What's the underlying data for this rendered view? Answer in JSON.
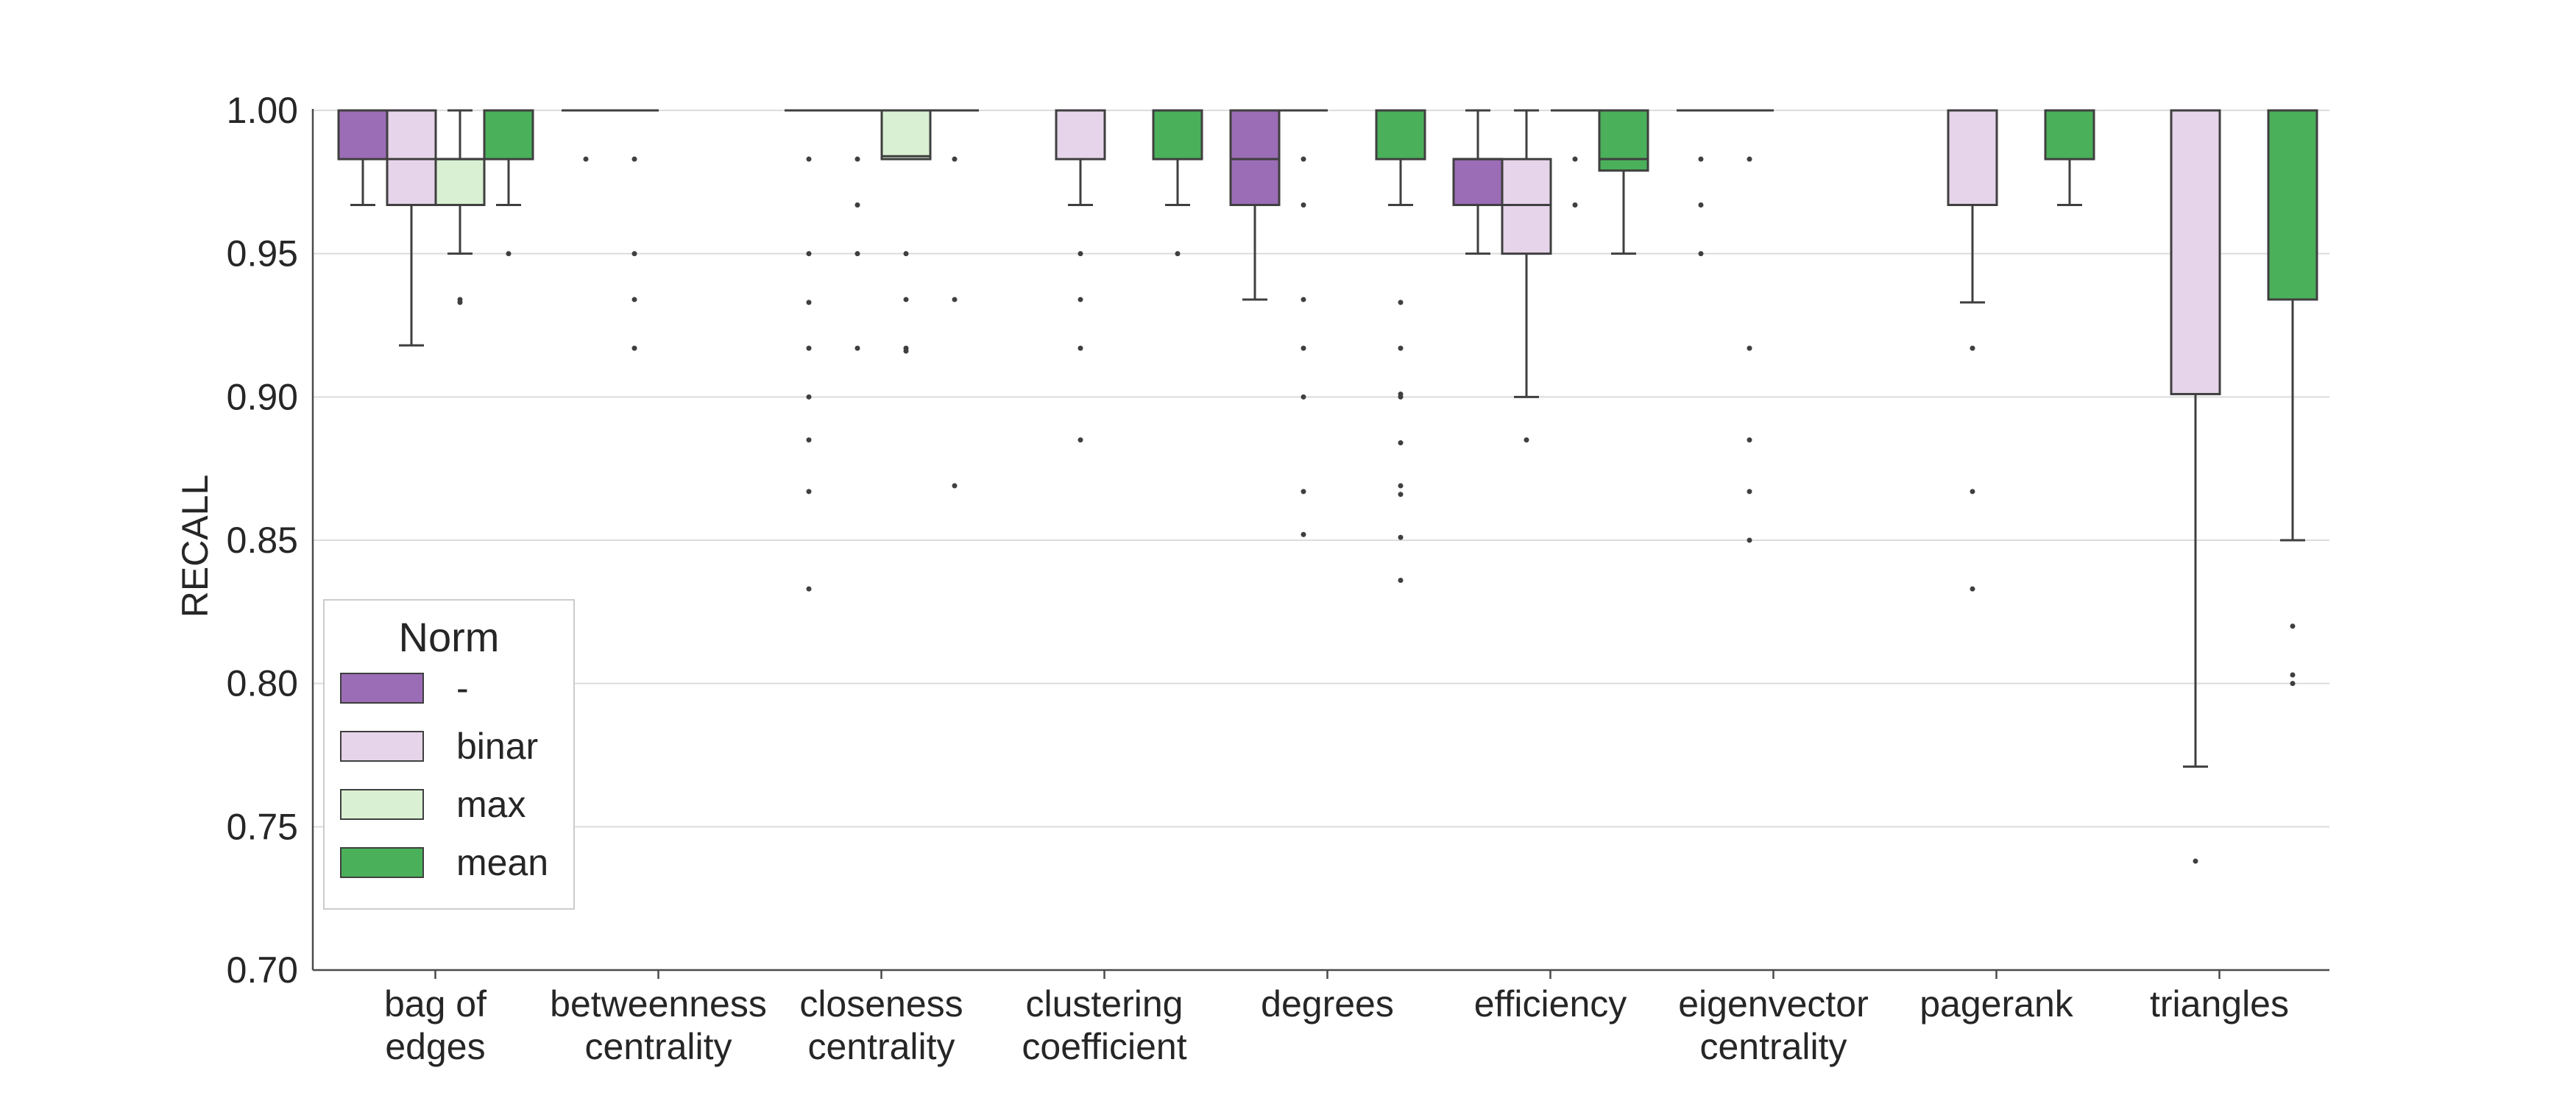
{
  "chart_data": {
    "type": "box",
    "title": "",
    "xlabel": "",
    "ylabel": "RECALL",
    "ylim": [
      0.7,
      1.0
    ],
    "yticks": [
      "0.70",
      "0.75",
      "0.80",
      "0.85",
      "0.90",
      "0.95",
      "1.00"
    ],
    "grid": "horizontal",
    "categories": [
      [
        "bag of",
        "edges"
      ],
      [
        "betweenness",
        "centrality"
      ],
      [
        "closeness",
        "centrality"
      ],
      [
        "clustering",
        "coefficient"
      ],
      [
        "degrees"
      ],
      [
        "efficiency"
      ],
      [
        "eigenvector",
        "centrality"
      ],
      [
        "pagerank"
      ],
      [
        "triangles"
      ]
    ],
    "legend": {
      "title": "Norm",
      "position": "lower-left",
      "entries": [
        "-",
        "binar",
        "max",
        "mean"
      ]
    },
    "series": [
      {
        "name": "-",
        "color": "#9b6db6",
        "boxes": [
          {
            "q1": 0.983,
            "median": 1.0,
            "q3": 1.0,
            "whislo": 0.967,
            "whishi": 1.0,
            "fliers": []
          },
          {
            "q1": 1.0,
            "median": 1.0,
            "q3": 1.0,
            "whislo": 1.0,
            "whishi": 1.0,
            "fliers": [
              0.983
            ]
          },
          {
            "q1": 1.0,
            "median": 1.0,
            "q3": 1.0,
            "whislo": 1.0,
            "whishi": 1.0,
            "fliers": [
              0.983,
              0.95,
              0.933,
              0.917,
              0.9,
              0.885,
              0.867,
              0.833
            ]
          },
          null,
          {
            "q1": 0.967,
            "median": 0.983,
            "q3": 1.0,
            "whislo": 0.934,
            "whishi": 1.0,
            "fliers": []
          },
          {
            "q1": 0.967,
            "median": 0.983,
            "q3": 0.983,
            "whislo": 0.95,
            "whishi": 1.0,
            "fliers": []
          },
          {
            "q1": 1.0,
            "median": 1.0,
            "q3": 1.0,
            "whislo": 1.0,
            "whishi": 1.0,
            "fliers": [
              0.983,
              0.967,
              0.95
            ]
          },
          null,
          null
        ]
      },
      {
        "name": "binar",
        "color": "#e6d4ea",
        "boxes": [
          {
            "q1": 0.967,
            "median": 0.983,
            "q3": 1.0,
            "whislo": 0.918,
            "whishi": 1.0,
            "fliers": []
          },
          {
            "q1": 1.0,
            "median": 1.0,
            "q3": 1.0,
            "whislo": 1.0,
            "whishi": 1.0,
            "fliers": [
              0.983,
              0.95,
              0.934,
              0.917
            ]
          },
          {
            "q1": 1.0,
            "median": 1.0,
            "q3": 1.0,
            "whislo": 1.0,
            "whishi": 1.0,
            "fliers": [
              0.983,
              0.967,
              0.95,
              0.917
            ]
          },
          {
            "q1": 0.983,
            "median": 1.0,
            "q3": 1.0,
            "whislo": 0.967,
            "whishi": 1.0,
            "fliers": [
              0.95,
              0.934,
              0.917,
              0.885
            ]
          },
          {
            "q1": 1.0,
            "median": 1.0,
            "q3": 1.0,
            "whislo": 1.0,
            "whishi": 1.0,
            "fliers": [
              0.983,
              0.967,
              0.934,
              0.917,
              0.9,
              0.867,
              0.852
            ]
          },
          {
            "q1": 0.95,
            "median": 0.967,
            "q3": 0.983,
            "whislo": 0.9,
            "whishi": 1.0,
            "fliers": [
              0.885
            ]
          },
          {
            "q1": 1.0,
            "median": 1.0,
            "q3": 1.0,
            "whislo": 1.0,
            "whishi": 1.0,
            "fliers": [
              0.983,
              0.917,
              0.885,
              0.867,
              0.85
            ]
          },
          {
            "q1": 0.967,
            "median": 1.0,
            "q3": 1.0,
            "whislo": 0.933,
            "whishi": 1.0,
            "fliers": [
              0.917,
              0.867,
              0.833
            ]
          },
          {
            "q1": 0.901,
            "median": 1.0,
            "q3": 1.0,
            "whislo": 0.771,
            "whishi": 1.0,
            "fliers": [
              0.738
            ]
          }
        ]
      },
      {
        "name": "max",
        "color": "#d9f0d3",
        "boxes": [
          {
            "q1": 0.967,
            "median": 0.983,
            "q3": 0.983,
            "whislo": 0.95,
            "whishi": 1.0,
            "fliers": [
              0.934,
              0.933
            ]
          },
          null,
          {
            "q1": 0.983,
            "median": 0.984,
            "q3": 1.0,
            "whislo": 0.983,
            "whishi": 1.0,
            "fliers": [
              0.95,
              0.934,
              0.917,
              0.916
            ]
          },
          null,
          null,
          {
            "q1": 1.0,
            "median": 1.0,
            "q3": 1.0,
            "whislo": 1.0,
            "whishi": 1.0,
            "fliers": [
              0.983,
              0.967
            ]
          },
          null,
          null,
          null
        ]
      },
      {
        "name": "mean",
        "color": "#4bb05a",
        "boxes": [
          {
            "q1": 0.983,
            "median": 1.0,
            "q3": 1.0,
            "whislo": 0.967,
            "whishi": 1.0,
            "fliers": [
              0.95
            ]
          },
          null,
          {
            "q1": 1.0,
            "median": 1.0,
            "q3": 1.0,
            "whislo": 1.0,
            "whishi": 1.0,
            "fliers": [
              0.983,
              0.934,
              0.869
            ]
          },
          {
            "q1": 0.983,
            "median": 1.0,
            "q3": 1.0,
            "whislo": 0.967,
            "whishi": 1.0,
            "fliers": [
              0.95
            ]
          },
          {
            "q1": 0.983,
            "median": 1.0,
            "q3": 1.0,
            "whislo": 0.967,
            "whishi": 1.0,
            "fliers": [
              0.933,
              0.917,
              0.901,
              0.9,
              0.884,
              0.869,
              0.866,
              0.851,
              0.836
            ]
          },
          {
            "q1": 0.979,
            "median": 0.983,
            "q3": 1.0,
            "whislo": 0.95,
            "whishi": 1.0,
            "fliers": []
          },
          null,
          {
            "q1": 0.983,
            "median": 1.0,
            "q3": 1.0,
            "whislo": 0.967,
            "whishi": 1.0,
            "fliers": []
          },
          {
            "q1": 0.934,
            "median": 1.0,
            "q3": 1.0,
            "whislo": 0.85,
            "whishi": 1.0,
            "fliers": [
              0.82,
              0.803,
              0.8
            ]
          }
        ]
      }
    ]
  }
}
